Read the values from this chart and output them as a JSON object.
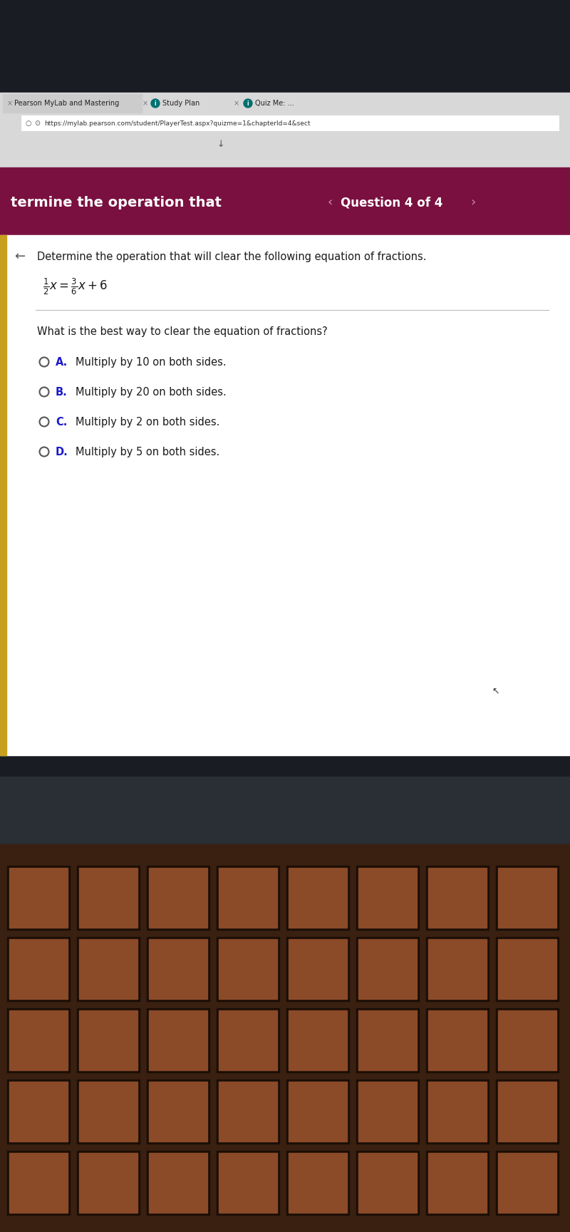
{
  "tab_text_1": "Pearson MyLab and Mastering",
  "tab_text_2": "Study Plan",
  "tab_text_3": "Quiz Me: ...",
  "url_text": "https://mylab.pearson.com/student/PlayerTest.aspx?quizme=1&chapterId=4&sect",
  "header_left_text": "termine the operation that",
  "header_right_text": "Question 4 of 4",
  "instruction_text": "Determine the operation that will clear the following equation of fractions.",
  "question_text": "What is the best way to clear the equation of fractions?",
  "options": [
    {
      "label": "A.",
      "text": "Multiply by 10 on both sides."
    },
    {
      "label": "B.",
      "text": "Multiply by 20 on both sides."
    },
    {
      "label": "C.",
      "text": "Multiply by 2 on both sides."
    },
    {
      "label": "D.",
      "text": "Multiply by 5 on both sides."
    }
  ],
  "maroon_color": "#7a1040",
  "dark_top_bg": "#1a1c24",
  "browser_bg": "#d8d8d8",
  "tab_bg": "#c8c8c8",
  "addr_bar_bg": "#ffffff",
  "white": "#ffffff",
  "content_bg": "#ebebeb",
  "text_dark": "#1a1a1a",
  "radio_color": "#555555",
  "option_label_color": "#1a1acc",
  "yellow_bar": "#c8a020",
  "laptop_bezel": "#2a2e35",
  "laptop_bezel2": "#1a1e25",
  "key_bg": "#6b3820",
  "key_face": "#8b4a28",
  "key_gap": "#1a0e06",
  "keyboard_base": "#3a2010"
}
